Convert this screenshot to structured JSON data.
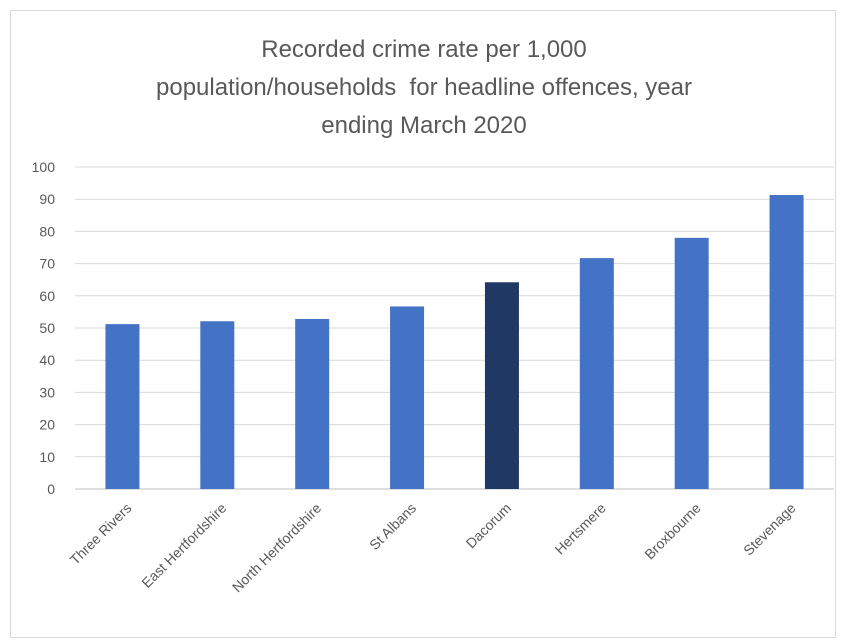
{
  "chart_data": {
    "type": "bar",
    "title_lines": [
      "Recorded crime rate per 1,000",
      "population/households  for headline offences, year",
      "ending March 2020"
    ],
    "xlabel": "",
    "ylabel": "",
    "ylim": [
      0,
      100
    ],
    "y_ticks": [
      "0",
      "10",
      "20",
      "30",
      "40",
      "50",
      "60",
      "70",
      "80",
      "90",
      "100"
    ],
    "grid": true,
    "legend": "none",
    "categories": [
      "Three Rivers",
      "East Hertfordshire",
      "North Hertfordshire",
      "St Albans",
      "Dacorum",
      "Hertsmere",
      "Broxbourne",
      "Stevenage"
    ],
    "values": [
      51.2,
      52.1,
      52.8,
      56.7,
      64.2,
      71.7,
      78,
      91.3
    ],
    "bar_color": "#4472C4",
    "highlight_color": "#1F3864",
    "highlight_category": "Dacorum"
  }
}
